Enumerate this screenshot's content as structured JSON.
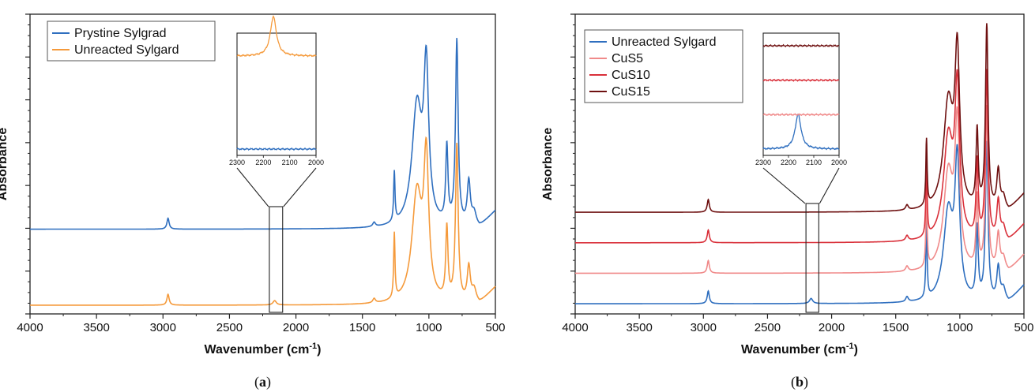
{
  "chart_data": [
    {
      "panel_label": "a",
      "type": "line",
      "xlabel": "Wavenumber (cm",
      "xlabel_sup": "-1",
      "xlabel_suffix": ")",
      "ylabel": "Absorbance",
      "xlim": [
        4000,
        500
      ],
      "x_ticks": [
        4000,
        3500,
        3000,
        2500,
        2000,
        1500,
        1000,
        500
      ],
      "y_ticks_labeled": false,
      "legend_position": "top-left",
      "series": [
        {
          "name": "Prystine Sylgrad",
          "color": "#2f6fbf",
          "baseline": 0.35,
          "peaks": [
            [
              2962,
              0.05,
              10
            ],
            [
              1412,
              0.02,
              12
            ],
            [
              1260,
              0.23,
              6
            ],
            [
              1090,
              0.55,
              45
            ],
            [
              1020,
              0.68,
              22
            ],
            [
              865,
              0.35,
              10
            ],
            [
              790,
              0.85,
              12
            ],
            [
              700,
              0.2,
              14
            ],
            [
              660,
              0.06,
              20
            ]
          ],
          "tail_500": 0.08
        },
        {
          "name": "Unreacted Sylgard",
          "color": "#f59a3b",
          "baseline": 0.0,
          "peaks": [
            [
              2962,
              0.05,
              10
            ],
            [
              2160,
              0.02,
              15
            ],
            [
              1412,
              0.02,
              12
            ],
            [
              1260,
              0.3,
              6
            ],
            [
              1090,
              0.5,
              45
            ],
            [
              1020,
              0.62,
              22
            ],
            [
              865,
              0.33,
              10
            ],
            [
              790,
              0.72,
              12
            ],
            [
              700,
              0.16,
              14
            ],
            [
              660,
              0.06,
              20
            ]
          ],
          "tail_500": 0.08
        }
      ],
      "inset": {
        "xlim": [
          2300,
          2000
        ],
        "x_ticks": [
          2300,
          2200,
          2100,
          2000
        ],
        "zoom_region": [
          2200,
          2100
        ]
      }
    },
    {
      "panel_label": "b",
      "type": "line",
      "xlabel": "Wavenumber (cm",
      "xlabel_sup": "-1",
      "xlabel_suffix": ")",
      "ylabel": "Absorbance",
      "xlim": [
        4000,
        500
      ],
      "x_ticks": [
        4000,
        3500,
        3000,
        2500,
        2000,
        1500,
        1000,
        500
      ],
      "y_ticks_labeled": false,
      "legend_position": "top-left",
      "series": [
        {
          "name": "Unreacted Sylgard",
          "color": "#2f6fbf",
          "baseline": 0.0,
          "peaks": [
            [
              2962,
              0.05,
              10
            ],
            [
              2160,
              0.02,
              15
            ],
            [
              1412,
              0.02,
              12
            ],
            [
              1260,
              0.3,
              6
            ],
            [
              1090,
              0.35,
              45
            ],
            [
              1020,
              0.52,
              22
            ],
            [
              865,
              0.28,
              10
            ],
            [
              790,
              0.62,
              12
            ],
            [
              700,
              0.13,
              14
            ],
            [
              660,
              0.05,
              20
            ]
          ],
          "tail_500": 0.07
        },
        {
          "name": "CuS5",
          "color": "#f08a8a",
          "baseline": 0.12,
          "peaks": [
            [
              2962,
              0.05,
              10
            ],
            [
              1412,
              0.02,
              12
            ],
            [
              1260,
              0.3,
              6
            ],
            [
              1090,
              0.38,
              45
            ],
            [
              1020,
              0.54,
              22
            ],
            [
              865,
              0.28,
              10
            ],
            [
              790,
              0.64,
              12
            ],
            [
              700,
              0.14,
              14
            ],
            [
              660,
              0.05,
              20
            ]
          ],
          "tail_500": 0.07
        },
        {
          "name": "CuS10",
          "color": "#d9303a",
          "baseline": 0.24,
          "peaks": [
            [
              2962,
              0.05,
              10
            ],
            [
              1412,
              0.02,
              12
            ],
            [
              1260,
              0.3,
              6
            ],
            [
              1090,
              0.4,
              45
            ],
            [
              1020,
              0.56,
              22
            ],
            [
              865,
              0.3,
              10
            ],
            [
              790,
              0.66,
              12
            ],
            [
              700,
              0.15,
              14
            ],
            [
              660,
              0.05,
              20
            ]
          ],
          "tail_500": 0.07
        },
        {
          "name": "CuS15",
          "color": "#6e1010",
          "baseline": 0.36,
          "peaks": [
            [
              2962,
              0.05,
              10
            ],
            [
              1412,
              0.02,
              12
            ],
            [
              1260,
              0.26,
              6
            ],
            [
              1090,
              0.42,
              45
            ],
            [
              1020,
              0.58,
              22
            ],
            [
              865,
              0.3,
              10
            ],
            [
              790,
              0.72,
              12
            ],
            [
              700,
              0.15,
              14
            ],
            [
              660,
              0.05,
              20
            ]
          ],
          "tail_500": 0.07
        }
      ],
      "inset": {
        "xlim": [
          2300,
          2000
        ],
        "x_ticks": [
          2300,
          2200,
          2100,
          2000
        ],
        "zoom_region": [
          2200,
          2100
        ]
      }
    }
  ],
  "captions": {
    "a": "a",
    "b": "b"
  }
}
